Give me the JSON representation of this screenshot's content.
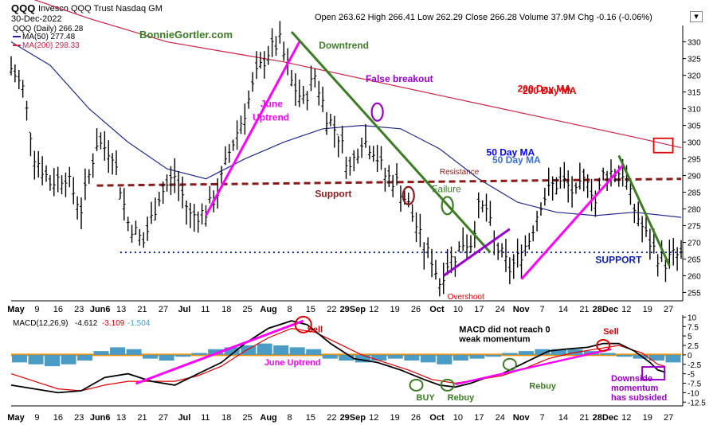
{
  "header": {
    "symbol": "QQQ",
    "name": "Invesco QQQ Trust Nasdaq GM",
    "date": "30-Dec-2022",
    "ohlc": "Open 263.62  High 266.41  Low 262.29  Close 266.28  Volume 37.9M  Chg -0.16 (-0.06%)",
    "arrow": "▾"
  },
  "watermark": "BonnieGortler.com",
  "legend": {
    "price": "QQQ (Daily) 266.28",
    "ma50": "MA(50) 277.48",
    "ma200": "MA(200) 298.33",
    "macd_label": "MACD(12,26,9)",
    "macd_vals": [
      "-4.612",
      "-3.109",
      "-1.504"
    ]
  },
  "colors": {
    "magenta": "#ff00ff",
    "green": "#3a7d22",
    "purple": "#9900cc",
    "maroon": "#8b1a1a",
    "red": "#dd0000",
    "blue_ma": "#1f2a8c",
    "red_ma": "#cc2244",
    "orange": "#f0900a",
    "hist": "#4a9cc4",
    "support_blue": "#0a1fb5"
  },
  "chart_data": [
    {
      "type": "ohlc",
      "title": "QQQ Invesco QQQ Trust Nasdaq GM",
      "y_ticks": [
        255,
        260,
        265,
        270,
        275,
        280,
        285,
        290,
        295,
        300,
        305,
        310,
        315,
        320,
        325,
        330
      ],
      "ylim": [
        252.5,
        333
      ],
      "x_ticks": [
        "May",
        "9",
        "16",
        "23",
        "Jun6",
        "13",
        "21",
        "27",
        "Jul",
        "11",
        "18",
        "25",
        "Aug",
        "8",
        "15",
        "22",
        "29Sep",
        "12",
        "19",
        "26",
        "Oct",
        "10",
        "17",
        "24",
        "Nov",
        "7",
        "14",
        "21",
        "28Dec",
        "12",
        "19",
        "27"
      ],
      "close_path": [
        [
          0,
          322
        ],
        [
          3,
          316
        ],
        [
          6,
          296
        ],
        [
          10,
          288
        ],
        [
          14,
          290
        ],
        [
          18,
          280
        ],
        [
          22,
          300
        ],
        [
          26,
          297
        ],
        [
          30,
          276
        ],
        [
          34,
          270
        ],
        [
          38,
          284
        ],
        [
          42,
          290
        ],
        [
          46,
          278
        ],
        [
          50,
          279
        ],
        [
          53,
          285
        ],
        [
          56,
          297
        ],
        [
          60,
          309
        ],
        [
          63,
          320
        ],
        [
          66,
          327
        ],
        [
          69,
          330
        ],
        [
          72,
          318
        ],
        [
          75,
          312
        ],
        [
          78,
          320
        ],
        [
          81,
          308
        ],
        [
          84,
          302
        ],
        [
          87,
          292
        ],
        [
          90,
          301
        ],
        [
          93,
          298
        ],
        [
          96,
          290
        ],
        [
          99,
          288
        ],
        [
          102,
          281
        ],
        [
          104,
          275
        ],
        [
          106,
          268
        ],
        [
          108,
          265
        ],
        [
          110,
          258
        ],
        [
          112,
          264
        ],
        [
          114,
          266
        ],
        [
          116,
          270
        ],
        [
          118,
          270
        ],
        [
          120,
          280
        ],
        [
          122,
          280
        ],
        [
          124,
          270
        ],
        [
          126,
          266
        ],
        [
          128,
          262
        ],
        [
          130,
          265
        ],
        [
          133,
          271
        ],
        [
          136,
          282
        ],
        [
          139,
          287
        ],
        [
          142,
          288
        ],
        [
          145,
          284
        ],
        [
          148,
          290
        ],
        [
          150,
          282
        ],
        [
          152,
          290
        ],
        [
          154,
          291
        ],
        [
          157,
          291
        ],
        [
          160,
          280
        ],
        [
          163,
          272
        ],
        [
          166,
          266
        ],
        [
          168,
          264
        ],
        [
          170,
          266
        ],
        [
          172,
          266
        ]
      ],
      "ma50": {
        "name": "50 Day MA",
        "values": [
          [
            0,
            330
          ],
          [
            10,
            323
          ],
          [
            20,
            310
          ],
          [
            30,
            300
          ],
          [
            40,
            292
          ],
          [
            50,
            289
          ],
          [
            60,
            295
          ],
          [
            70,
            300
          ],
          [
            80,
            304
          ],
          [
            90,
            305
          ],
          [
            100,
            304
          ],
          [
            110,
            298
          ],
          [
            120,
            289
          ],
          [
            130,
            282
          ],
          [
            140,
            279
          ],
          [
            150,
            278
          ],
          [
            160,
            279
          ],
          [
            172,
            277.48
          ]
        ]
      },
      "ma200": {
        "name": "200 Day MA",
        "values": [
          [
            0,
            345
          ],
          [
            20,
            337
          ],
          [
            40,
            330
          ],
          [
            60,
            326
          ],
          [
            70,
            324
          ],
          [
            90,
            319
          ],
          [
            110,
            314
          ],
          [
            130,
            309
          ],
          [
            150,
            304
          ],
          [
            160,
            301.5
          ],
          [
            172,
            298.33
          ]
        ]
      },
      "resistance_support_line": {
        "label_top": "Resistance",
        "label_bottom": "Support",
        "from": [
          22,
          287
        ],
        "to": [
          172,
          289
        ]
      },
      "support_line": {
        "label": "SUPPORT",
        "value": 267
      },
      "trendlines": [
        {
          "label": "June\nUptrend",
          "color": "magenta",
          "from": [
            50,
            278
          ],
          "to": [
            74,
            330
          ]
        },
        {
          "label": "Downtrend",
          "color": "green",
          "from": [
            72,
            333
          ],
          "to": [
            123,
            267
          ]
        },
        {
          "label": "",
          "color": "purple",
          "from": [
            111,
            260
          ],
          "to": [
            128,
            274
          ]
        },
        {
          "label": "",
          "color": "magenta",
          "from": [
            131,
            259
          ],
          "to": [
            157,
            293
          ]
        },
        {
          "label": "",
          "color": "green",
          "from": [
            156,
            296
          ],
          "to": [
            169,
            263
          ]
        }
      ],
      "annotations": [
        {
          "text": "False breakout",
          "color": "purple",
          "at": [
            91,
            318
          ]
        },
        {
          "text": "200 Day MA",
          "color": "red",
          "at": [
            130,
            315
          ]
        },
        {
          "text": "50 Day MA",
          "color": "blue",
          "at": [
            122,
            296
          ]
        },
        {
          "text": "Failure",
          "color": "green",
          "at": [
            108,
            285
          ]
        },
        {
          "text": "Overshoot",
          "color": "red",
          "at": [
            112,
            253
          ]
        }
      ],
      "circles": [
        {
          "color": "purple",
          "at": [
            94,
            309
          ]
        },
        {
          "color": "maroon",
          "at": [
            102,
            284
          ]
        },
        {
          "color": "green",
          "at": [
            112,
            281
          ]
        }
      ],
      "boxes": [
        {
          "color": "red",
          "at": [
            167,
            299
          ]
        },
        {
          "color": "blue",
          "at": [
            167,
            278
          ]
        }
      ]
    },
    {
      "type": "macd",
      "title": "MACD(12,26,9)",
      "y_ticks": [
        10,
        7.5,
        5,
        2.5,
        0,
        -2.5,
        -5,
        -7.5,
        -10,
        -12.5
      ],
      "ylim": [
        -13.5,
        10.5
      ],
      "zero_line_color": "orange",
      "macd_line": [
        [
          0,
          -8
        ],
        [
          6,
          -9
        ],
        [
          12,
          -10
        ],
        [
          18,
          -9.5
        ],
        [
          24,
          -6
        ],
        [
          30,
          -5
        ],
        [
          36,
          -7
        ],
        [
          42,
          -8
        ],
        [
          48,
          -5
        ],
        [
          54,
          -2
        ],
        [
          60,
          3
        ],
        [
          66,
          7
        ],
        [
          72,
          9
        ],
        [
          76,
          8
        ],
        [
          82,
          3
        ],
        [
          88,
          -1
        ],
        [
          94,
          -2
        ],
        [
          100,
          -4
        ],
        [
          106,
          -6.5
        ],
        [
          110,
          -8
        ],
        [
          114,
          -8.5
        ],
        [
          118,
          -7.5
        ],
        [
          122,
          -6
        ],
        [
          126,
          -5
        ],
        [
          130,
          -3
        ],
        [
          134,
          -1
        ],
        [
          138,
          1
        ],
        [
          142,
          1.5
        ],
        [
          148,
          2
        ],
        [
          152,
          3
        ],
        [
          156,
          3
        ],
        [
          160,
          1
        ],
        [
          164,
          -2
        ],
        [
          166,
          -4
        ],
        [
          168,
          -4.6
        ]
      ],
      "signal_line": [
        [
          0,
          -5
        ],
        [
          6,
          -7
        ],
        [
          12,
          -9
        ],
        [
          18,
          -9.5
        ],
        [
          24,
          -8
        ],
        [
          30,
          -7
        ],
        [
          36,
          -7
        ],
        [
          42,
          -7
        ],
        [
          48,
          -5.5
        ],
        [
          54,
          -3
        ],
        [
          60,
          1
        ],
        [
          66,
          4.5
        ],
        [
          72,
          7
        ],
        [
          78,
          6
        ],
        [
          84,
          3
        ],
        [
          90,
          0
        ],
        [
          96,
          -2
        ],
        [
          102,
          -4
        ],
        [
          108,
          -6.5
        ],
        [
          114,
          -7.5
        ],
        [
          120,
          -6.5
        ],
        [
          126,
          -5.5
        ],
        [
          132,
          -3.5
        ],
        [
          138,
          -1
        ],
        [
          144,
          0.5
        ],
        [
          150,
          1.5
        ],
        [
          156,
          2.5
        ],
        [
          162,
          0.5
        ],
        [
          166,
          -2.5
        ],
        [
          168,
          -3.1
        ]
      ],
      "histogram": [
        -2,
        -2.5,
        -3,
        -2.5,
        -1.5,
        1,
        2,
        1.5,
        -1,
        -1.5,
        -0.5,
        0.5,
        1.5,
        2,
        2.5,
        3,
        2.5,
        2,
        1.5,
        -1,
        -1.5,
        -2,
        -1.5,
        -1,
        -1.5,
        -2,
        -2.5,
        -1.5,
        -1,
        -0.5,
        0.5,
        1,
        1.5,
        1.5,
        1.5,
        1,
        0.5,
        -0.5,
        -1,
        -1.5,
        -2
      ],
      "annotations": [
        {
          "text": "June Uptrend",
          "color": "magenta",
          "at": [
            65,
            -2.8
          ]
        },
        {
          "text": "Sell",
          "color": "red",
          "at": [
            76,
            6
          ]
        },
        {
          "text": "MACD did not reach 0",
          "color": "black",
          "at": [
            115,
            6
          ]
        },
        {
          "text": "weak momentum",
          "color": "black",
          "at": [
            115,
            3.5
          ]
        },
        {
          "text": "Sell",
          "color": "red",
          "at": [
            152,
            5.5
          ]
        },
        {
          "text": "BUY",
          "color": "green",
          "at": [
            104,
            -12
          ]
        },
        {
          "text": "Rebuy",
          "color": "green",
          "at": [
            112,
            -12
          ]
        },
        {
          "text": "Rebuy",
          "color": "green",
          "at": [
            133,
            -9
          ]
        },
        {
          "text": "Downside",
          "color": "purple",
          "at": [
            154,
            -7
          ]
        },
        {
          "text": "momentum",
          "color": "purple",
          "at": [
            154,
            -9.5
          ]
        },
        {
          "text": "has subsided",
          "color": "purple",
          "at": [
            154,
            -12
          ]
        }
      ],
      "x_ticks": [
        "May",
        "9",
        "16",
        "23",
        "Jun6",
        "13",
        "21",
        "27",
        "Jul",
        "11",
        "18",
        "25",
        "Aug",
        "8",
        "15",
        "22",
        "29Sep",
        "12",
        "19",
        "26",
        "Oct",
        "10",
        "17",
        "24",
        "Nov",
        "7",
        "14",
        "21",
        "28Dec",
        "12",
        "19",
        "27"
      ]
    }
  ]
}
